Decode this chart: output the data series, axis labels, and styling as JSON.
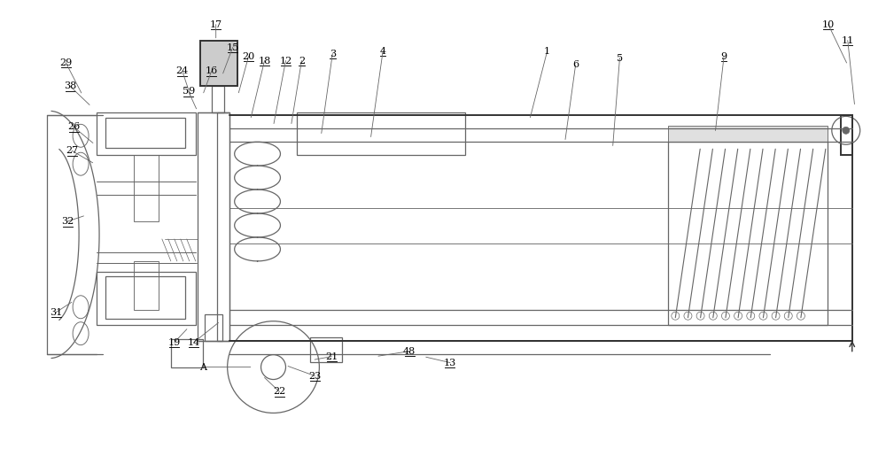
{
  "bg": "#ffffff",
  "lc": "#666666",
  "dc": "#333333",
  "lw": 0.9,
  "lw2": 1.4
}
